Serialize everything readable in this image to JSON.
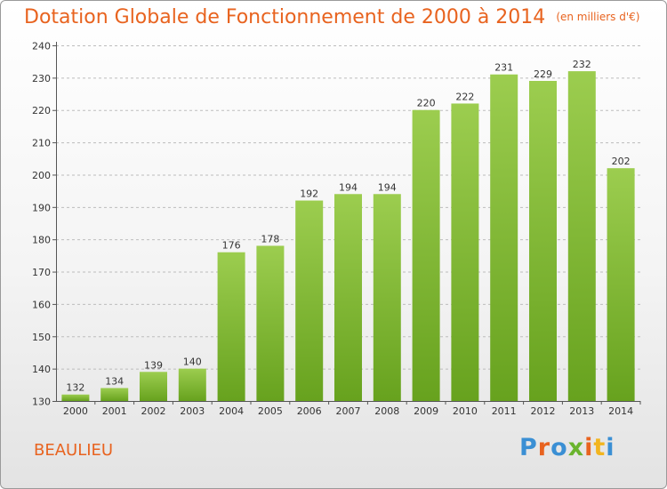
{
  "header": {
    "title": "Dotation Globale de Fonctionnement de 2000 à 2014",
    "unit": "(en milliers d'€)"
  },
  "footer": {
    "city": "BEAULIEU",
    "logo": {
      "letters": [
        "P",
        "r",
        "o",
        "x",
        "i",
        "t",
        "i"
      ],
      "colors": [
        "#3a8fd4",
        "#e8631f",
        "#3a8fd4",
        "#6ab42d",
        "#e8631f",
        "#f2b51f",
        "#3a8fd4"
      ]
    }
  },
  "chart_data": {
    "type": "bar",
    "categories": [
      "2000",
      "2001",
      "2002",
      "2003",
      "2004",
      "2005",
      "2006",
      "2007",
      "2008",
      "2009",
      "2010",
      "2011",
      "2012",
      "2013",
      "2014"
    ],
    "values": [
      132,
      134,
      139,
      140,
      176,
      178,
      192,
      194,
      194,
      220,
      222,
      231,
      229,
      232,
      202
    ],
    "ylim": [
      130,
      240
    ],
    "yticks": [
      130,
      140,
      150,
      160,
      170,
      180,
      190,
      200,
      210,
      220,
      230,
      240
    ],
    "grid": true,
    "bar_color_top": "#9ccd4f",
    "bar_color_bottom": "#67a21e"
  }
}
